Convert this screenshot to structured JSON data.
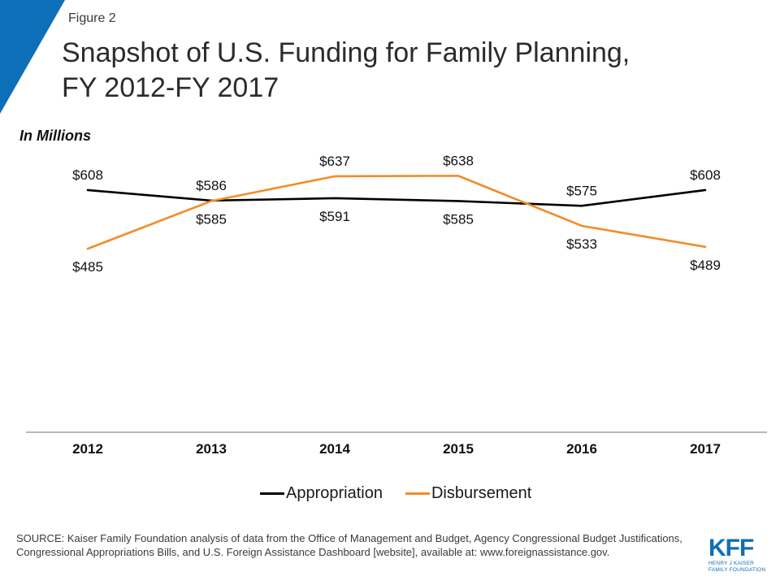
{
  "figure_label": "Figure 2",
  "title_line1": "Snapshot of U.S. Funding for Family Planning,",
  "title_line2": "FY 2012-FY 2017",
  "units_label": "In Millions",
  "source": "SOURCE: Kaiser Family Foundation analysis of data from the Office of Management and Budget, Agency Congressional Budget Justifications, Congressional Appropriations Bills, and U.S. Foreign Assistance Dashboard [website], available at: www.foreignassistance.gov.",
  "logo": {
    "main": "KFF",
    "sub_line1": "HENRY J KAISER",
    "sub_line2": "FAMILY FOUNDATION"
  },
  "colors": {
    "accent": "#0d6fb8",
    "appropriation": "#000000",
    "disbursement": "#f28c28",
    "axis": "#8c8c8c"
  },
  "chart_data": {
    "type": "line",
    "x": [
      "2012",
      "2013",
      "2014",
      "2015",
      "2016",
      "2017"
    ],
    "series": [
      {
        "name": "Appropriation",
        "color": "#000000",
        "values": [
          608,
          586,
          591,
          585,
          575,
          608
        ],
        "labels": [
          "$608",
          "$586",
          "$591",
          "$585",
          "$575",
          "$608"
        ],
        "label_side": [
          "above",
          "above",
          "below",
          "below",
          "above",
          "above"
        ]
      },
      {
        "name": "Disbursement",
        "color": "#f28c28",
        "values": [
          485,
          585,
          637,
          638,
          533,
          489
        ],
        "labels": [
          "$485",
          "$585",
          "$637",
          "$638",
          "$533",
          "$489"
        ],
        "label_side": [
          "below",
          "below",
          "above",
          "above",
          "below",
          "below"
        ]
      }
    ],
    "ylim": [
      100,
      700
    ],
    "grid": false,
    "legend_position": "bottom"
  }
}
